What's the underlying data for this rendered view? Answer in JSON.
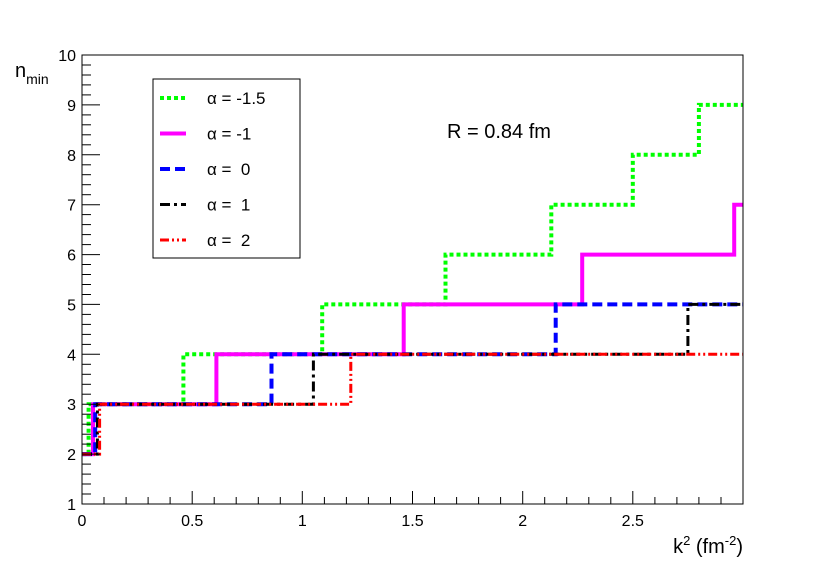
{
  "chart_data": {
    "type": "line",
    "title": "",
    "annotation": "R = 0.84 fm",
    "ylabel": {
      "main": "n",
      "sub": "min"
    },
    "xlabel": {
      "pre": "k",
      "sup1": "2",
      "mid": " (fm",
      "sup2": "-2",
      "post": ")"
    },
    "xlim": [
      0,
      3.0
    ],
    "ylim": [
      1,
      10
    ],
    "x_ticks": [
      {
        "value": 0,
        "label": "0"
      },
      {
        "value": 0.5,
        "label": "0.5"
      },
      {
        "value": 1,
        "label": "1"
      },
      {
        "value": 1.5,
        "label": "1.5"
      },
      {
        "value": 2,
        "label": "2"
      },
      {
        "value": 2.5,
        "label": "2.5"
      }
    ],
    "y_ticks": [
      {
        "value": 1,
        "label": "1"
      },
      {
        "value": 2,
        "label": "2"
      },
      {
        "value": 3,
        "label": "3"
      },
      {
        "value": 4,
        "label": "4"
      },
      {
        "value": 5,
        "label": "5"
      },
      {
        "value": 6,
        "label": "6"
      },
      {
        "value": 7,
        "label": "7"
      },
      {
        "value": 8,
        "label": "8"
      },
      {
        "value": 9,
        "label": "9"
      },
      {
        "value": 10,
        "label": "10"
      }
    ],
    "legend_position": "top-left",
    "series": [
      {
        "name": "α = -1.5",
        "color": "#00ff00",
        "style": "dotted",
        "steps_x": [
          0.0,
          0.03,
          0.46,
          1.09,
          1.65,
          2.13,
          2.5,
          2.8,
          3.0
        ],
        "steps_y": [
          2,
          3,
          4,
          5,
          6,
          7,
          8,
          9
        ]
      },
      {
        "name": "α = -1",
        "color": "#ff00ff",
        "style": "solid",
        "steps_x": [
          0.0,
          0.05,
          0.61,
          1.46,
          2.27,
          2.96,
          3.0
        ],
        "steps_y": [
          2,
          3,
          4,
          5,
          6,
          7
        ]
      },
      {
        "name": "α =  0",
        "color": "#0000ff",
        "style": "dashed",
        "steps_x": [
          0.0,
          0.06,
          0.86,
          2.15,
          3.0
        ],
        "steps_y": [
          2,
          3,
          4,
          5
        ]
      },
      {
        "name": "α =  1",
        "color": "#000000",
        "style": "dashdot",
        "steps_x": [
          0.0,
          0.07,
          1.05,
          2.75,
          3.0
        ],
        "steps_y": [
          2,
          3,
          4,
          5
        ]
      },
      {
        "name": "α =  2",
        "color": "#ff0000",
        "style": "dashdotdot",
        "steps_x": [
          0.0,
          0.08,
          1.22,
          3.0
        ],
        "steps_y": [
          2,
          3,
          4
        ]
      }
    ]
  }
}
